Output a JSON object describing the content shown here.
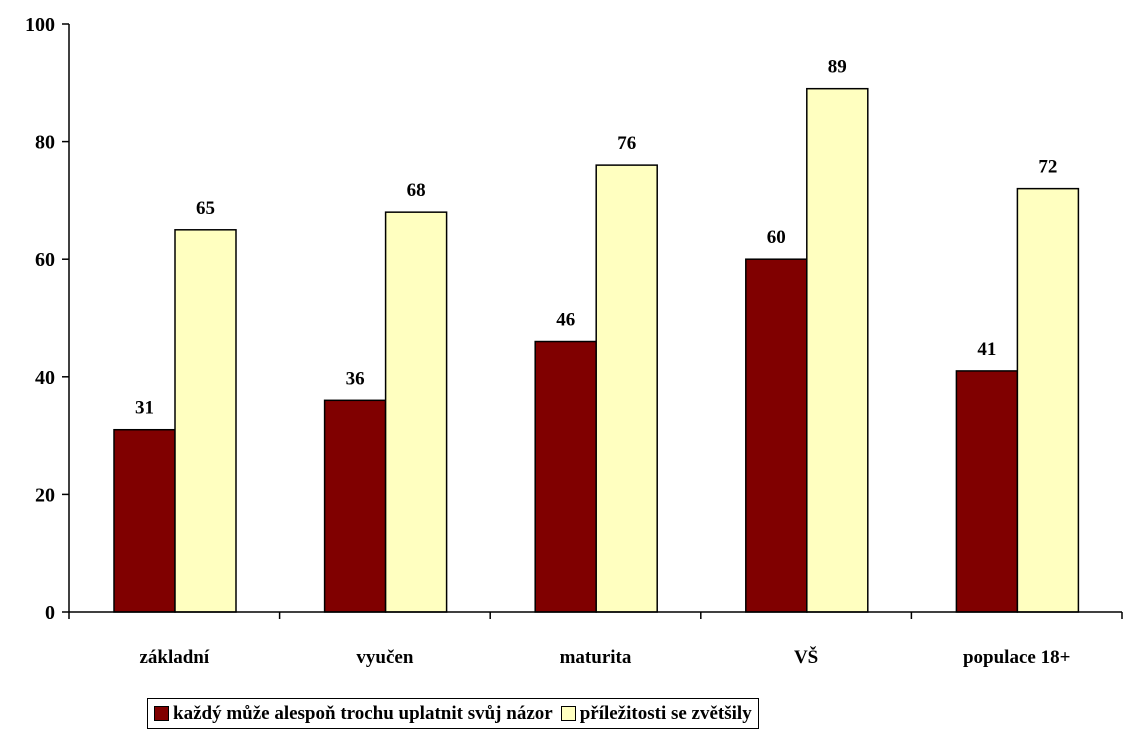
{
  "chart_data": {
    "type": "bar",
    "categories": [
      "základní",
      "vyučen",
      "maturita",
      "VŠ",
      "populace 18+"
    ],
    "series": [
      {
        "name": "každý může alespoň trochu uplatnit svůj názor",
        "values": [
          31,
          36,
          46,
          60,
          41
        ],
        "color": "#800000"
      },
      {
        "name": "příležitosti se zvětšily",
        "values": [
          65,
          68,
          76,
          89,
          72
        ],
        "color": "#FFFFC0"
      }
    ],
    "ylim": [
      0,
      100
    ],
    "yticks": [
      "0",
      "20",
      "40",
      "60",
      "80",
      "100"
    ],
    "grid": false,
    "legend_position": "bottom"
  }
}
